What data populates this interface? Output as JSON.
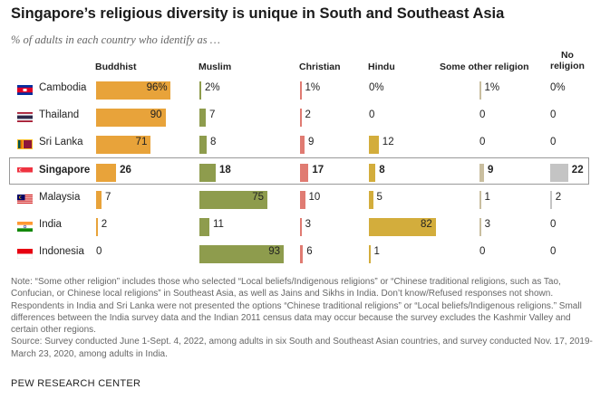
{
  "title": "Singapore’s religious diversity is unique in South and Southeast Asia",
  "subtitle": "% of adults in each country who identify as …",
  "columns": [
    {
      "key": "buddhist",
      "label": "Buddhist",
      "color": "#E8A33A"
    },
    {
      "key": "muslim",
      "label": "Muslim",
      "color": "#8E9C4D"
    },
    {
      "key": "christian",
      "label": "Christian",
      "color": "#E07B72"
    },
    {
      "key": "hindu",
      "label": "Hindu",
      "color": "#D3AD3C"
    },
    {
      "key": "other",
      "label": "Some other religion",
      "color": "#C9BE9F"
    },
    {
      "key": "none",
      "label": "No religion",
      "label_line1": "No",
      "label_line2": "religion",
      "color": "#C4C4C4"
    }
  ],
  "chart_data": {
    "type": "bar",
    "categories": [
      "Cambodia",
      "Thailand",
      "Sri Lanka",
      "Singapore",
      "Malaysia",
      "India",
      "Indonesia"
    ],
    "highlight": "Singapore",
    "series": [
      {
        "name": "Buddhist",
        "values": [
          96,
          90,
          71,
          26,
          7,
          2,
          0
        ]
      },
      {
        "name": "Muslim",
        "values": [
          2,
          7,
          8,
          18,
          75,
          11,
          93
        ]
      },
      {
        "name": "Christian",
        "values": [
          1,
          2,
          9,
          17,
          10,
          3,
          6
        ]
      },
      {
        "name": "Hindu",
        "values": [
          0,
          0,
          12,
          8,
          5,
          82,
          1
        ]
      },
      {
        "name": "Some other religion",
        "values": [
          1,
          0,
          0,
          9,
          1,
          3,
          0
        ]
      },
      {
        "name": "No religion",
        "values": [
          0,
          0,
          0,
          22,
          2,
          0,
          0
        ]
      }
    ],
    "value_labels": [
      [
        "96%",
        "2%",
        "1%",
        "0%",
        "1%",
        "0%"
      ],
      [
        "90",
        "7",
        "2",
        "0",
        "0",
        "0"
      ],
      [
        "71",
        "8",
        "9",
        "12",
        "0",
        "0"
      ],
      [
        "26",
        "18",
        "17",
        "8",
        "9",
        "22"
      ],
      [
        "7",
        "75",
        "10",
        "5",
        "1",
        "2"
      ],
      [
        "2",
        "11",
        "3",
        "82",
        "3",
        "0"
      ],
      [
        "0",
        "93",
        "6",
        "1",
        "0",
        "0"
      ]
    ],
    "unit": "%"
  },
  "note": "Note: “Some other religion” includes those who selected “Local beliefs/Indigenous religions” or “Chinese traditional religions, such as Tao, Confucian, or Chinese local religions” in Southeast Asia, as well as Jains and Sikhs in India. Don’t know/Refused responses not shown. Respondents in India and Sri Lanka were not presented the options “Chinese traditional religions” or “Local beliefs/Indigenous religions.” Small differences between the India survey data and the Indian 2011 census data may occur because the survey excludes the Kashmir Valley and certain other regions.",
  "source": "Source: Survey conducted June 1-Sept. 4, 2022, among adults in six South and Southeast Asian countries, and survey conducted Nov. 17, 2019-March 23, 2020, among adults in India.",
  "credit": "PEW RESEARCH CENTER"
}
